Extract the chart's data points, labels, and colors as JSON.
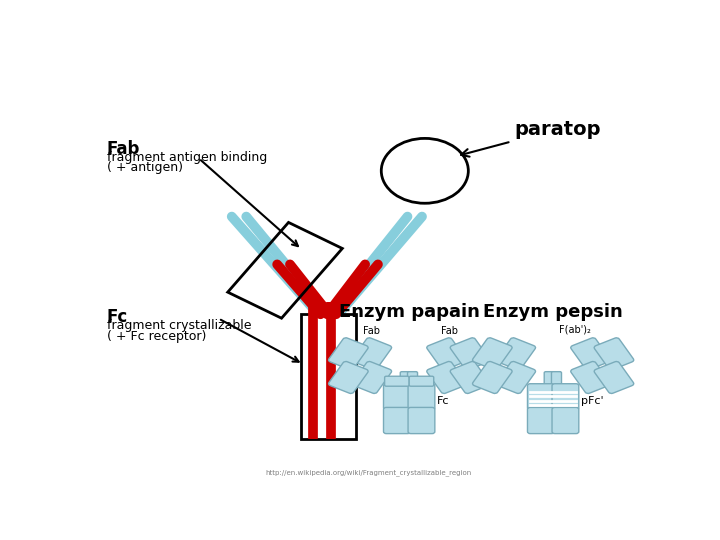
{
  "bg_color": "#ffffff",
  "colors": {
    "red": "#cc0000",
    "blue": "#87cedc",
    "black": "#000000",
    "box_fill": "#b8dde8",
    "box_edge": "#7aabba"
  },
  "paratop_text": "paratop",
  "fab_bold": "Fab",
  "fab_text1": "fragment antigen binding",
  "fab_text2": "( + antigen)",
  "fc_bold": "Fc",
  "fc_text1": "fragment crystallizable",
  "fc_text2": "( + Fc receptor)",
  "enzym_papain": "Enzym papain",
  "enzym_pepsin": "Enzym pepsin",
  "fab_label": "Fab",
  "fc_label": "Fc",
  "fab2_label": "F(ab')₂",
  "pfc_label": "pFc'",
  "url": "http://en.wikipedia.org/wiki/Fragment_crystallizable_region"
}
